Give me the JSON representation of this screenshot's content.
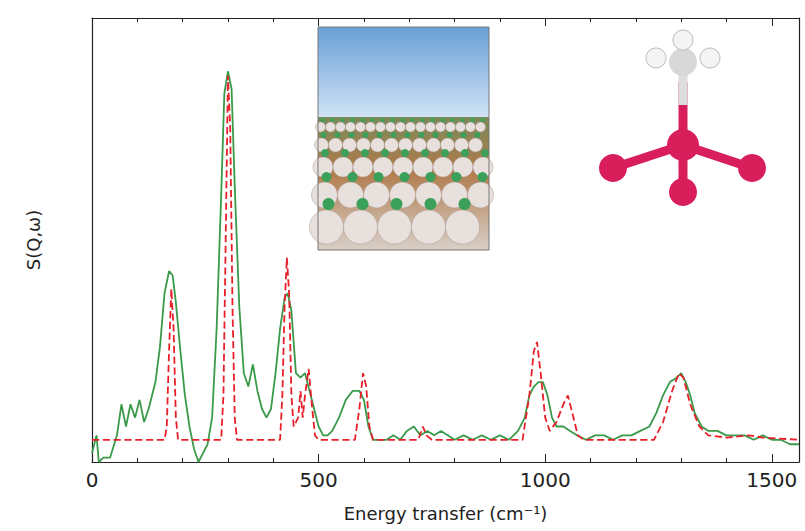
{
  "chart_data": {
    "type": "line",
    "x_label": "Energy transfer (cm⁻¹)",
    "y_label": "S(Q,ω)",
    "xlim": [
      0,
      1560
    ],
    "xticks": [
      0,
      500,
      1000,
      1500
    ],
    "ylim": [
      0,
      1
    ],
    "grid": false,
    "tick_labels": "x",
    "series": [
      {
        "color": "#3a9a4a",
        "line_style": "solid",
        "x": [
          0,
          10,
          15,
          25,
          40,
          55,
          65,
          75,
          85,
          95,
          105,
          115,
          125,
          140,
          150,
          160,
          170,
          178,
          185,
          195,
          205,
          215,
          225,
          235,
          245,
          255,
          265,
          275,
          285,
          292,
          300,
          308,
          315,
          325,
          335,
          345,
          355,
          365,
          375,
          385,
          395,
          405,
          415,
          425,
          432,
          440,
          450,
          460,
          470,
          480,
          490,
          500,
          510,
          520,
          530,
          545,
          560,
          575,
          590,
          600,
          610,
          620,
          635,
          650,
          665,
          680,
          695,
          710,
          725,
          740,
          755,
          770,
          785,
          800,
          820,
          840,
          860,
          880,
          900,
          920,
          940,
          955,
          965,
          975,
          985,
          995,
          1005,
          1015,
          1025,
          1040,
          1055,
          1070,
          1090,
          1110,
          1130,
          1150,
          1170,
          1190,
          1210,
          1230,
          1245,
          1260,
          1275,
          1290,
          1300,
          1310,
          1320,
          1330,
          1345,
          1360,
          1380,
          1400,
          1420,
          1440,
          1460,
          1480,
          1500,
          1520,
          1540,
          1560
        ],
        "values": [
          0.02,
          0.06,
          0.0,
          0.01,
          0.01,
          0.06,
          0.13,
          0.08,
          0.13,
          0.1,
          0.14,
          0.09,
          0.12,
          0.18,
          0.26,
          0.38,
          0.43,
          0.42,
          0.36,
          0.25,
          0.15,
          0.08,
          0.03,
          0.0,
          0.02,
          0.04,
          0.1,
          0.3,
          0.6,
          0.83,
          0.88,
          0.84,
          0.62,
          0.35,
          0.2,
          0.17,
          0.22,
          0.16,
          0.12,
          0.1,
          0.12,
          0.2,
          0.3,
          0.37,
          0.38,
          0.34,
          0.2,
          0.19,
          0.2,
          0.16,
          0.12,
          0.08,
          0.06,
          0.06,
          0.07,
          0.1,
          0.14,
          0.16,
          0.16,
          0.14,
          0.08,
          0.05,
          0.05,
          0.05,
          0.06,
          0.05,
          0.07,
          0.08,
          0.06,
          0.07,
          0.06,
          0.07,
          0.06,
          0.05,
          0.06,
          0.05,
          0.06,
          0.05,
          0.06,
          0.05,
          0.07,
          0.1,
          0.15,
          0.17,
          0.18,
          0.18,
          0.15,
          0.1,
          0.08,
          0.08,
          0.07,
          0.06,
          0.05,
          0.06,
          0.06,
          0.05,
          0.06,
          0.06,
          0.07,
          0.08,
          0.11,
          0.15,
          0.18,
          0.19,
          0.2,
          0.18,
          0.15,
          0.11,
          0.08,
          0.07,
          0.07,
          0.06,
          0.06,
          0.06,
          0.05,
          0.06,
          0.05,
          0.05,
          0.04,
          0.04
        ]
      },
      {
        "color": "#e8202a",
        "line_style": "dashed",
        "x": [
          0,
          160,
          165,
          170,
          175,
          180,
          185,
          190,
          285,
          290,
          295,
          300,
          305,
          310,
          315,
          320,
          415,
          420,
          425,
          430,
          435,
          440,
          445,
          455,
          460,
          465,
          470,
          478,
          485,
          492,
          500,
          580,
          590,
          598,
          605,
          612,
          620,
          720,
          730,
          738,
          750,
          950,
          965,
          975,
          982,
          990,
          1000,
          1010,
          1025,
          1040,
          1050,
          1060,
          1072,
          1085,
          1240,
          1260,
          1280,
          1295,
          1305,
          1320,
          1340,
          1360,
          1400,
          1450,
          1480,
          1560
        ],
        "values": [
          0.05,
          0.05,
          0.08,
          0.25,
          0.39,
          0.3,
          0.1,
          0.05,
          0.05,
          0.15,
          0.5,
          0.87,
          0.75,
          0.35,
          0.1,
          0.05,
          0.05,
          0.15,
          0.35,
          0.46,
          0.38,
          0.15,
          0.08,
          0.1,
          0.16,
          0.1,
          0.15,
          0.21,
          0.13,
          0.06,
          0.05,
          0.05,
          0.12,
          0.2,
          0.17,
          0.08,
          0.05,
          0.05,
          0.08,
          0.06,
          0.05,
          0.05,
          0.15,
          0.25,
          0.27,
          0.2,
          0.1,
          0.07,
          0.09,
          0.13,
          0.15,
          0.11,
          0.06,
          0.05,
          0.05,
          0.09,
          0.16,
          0.2,
          0.19,
          0.13,
          0.08,
          0.06,
          0.055,
          0.06,
          0.055,
          0.05
        ]
      }
    ]
  }
}
